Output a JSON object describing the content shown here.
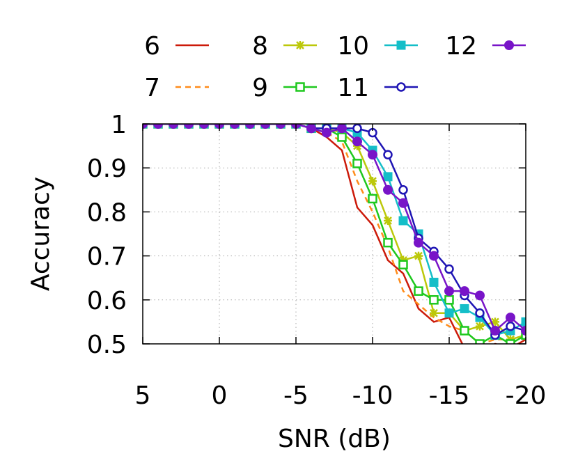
{
  "chart_data": {
    "type": "line",
    "title": "",
    "xlabel": "SNR (dB)",
    "ylabel": "Accuracy",
    "xlim": [
      5,
      -20
    ],
    "ylim": [
      0.5,
      1
    ],
    "x_reversed": true,
    "grid": true,
    "legend_placement": "top",
    "x_ticks": [
      "5",
      "0",
      "-5",
      "-10",
      "-15",
      "-20"
    ],
    "x_tick_values": [
      5,
      0,
      -5,
      -10,
      -15,
      -20
    ],
    "y_ticks": [
      "0.5",
      "0.6",
      "0.7",
      "0.8",
      "0.9",
      "1"
    ],
    "y_tick_values": [
      0.5,
      0.6,
      0.7,
      0.8,
      0.9,
      1
    ],
    "x": [
      5,
      4,
      3,
      2,
      1,
      0,
      -1,
      -2,
      -3,
      -4,
      -5,
      -6,
      -7,
      -8,
      -9,
      -10,
      -11,
      -12,
      -13,
      -14,
      -15,
      -16,
      -17,
      -18,
      -19,
      -20
    ],
    "series": [
      {
        "name": "6",
        "color": "#cc1a0a",
        "dash": false,
        "marker": "none",
        "values": [
          1,
          1,
          1,
          1,
          1,
          1,
          1,
          1,
          1,
          1,
          1,
          0.99,
          0.97,
          0.94,
          0.81,
          0.77,
          0.69,
          0.66,
          0.58,
          0.55,
          0.56,
          0.49,
          0.48,
          0.5,
          0.49,
          0.51
        ]
      },
      {
        "name": "7",
        "color": "#ff8c1a",
        "dash": true,
        "marker": "none",
        "values": [
          1,
          1,
          1,
          1,
          1,
          1,
          1,
          1,
          1,
          1,
          1,
          0.99,
          0.98,
          0.96,
          0.87,
          0.8,
          0.72,
          0.62,
          0.59,
          0.56,
          0.54,
          0.53,
          0.5,
          0.51,
          0.51,
          0.52
        ]
      },
      {
        "name": "8",
        "color": "#bcc80a",
        "dash": false,
        "marker": "star",
        "values": [
          1,
          1,
          1,
          1,
          1,
          1,
          1,
          1,
          1,
          1,
          1,
          0.99,
          0.99,
          0.98,
          0.95,
          0.87,
          0.78,
          0.69,
          0.7,
          0.57,
          0.57,
          0.53,
          0.54,
          0.55,
          0.51,
          0.52
        ]
      },
      {
        "name": "9",
        "color": "#1ec81e",
        "dash": false,
        "marker": "open-square",
        "values": [
          1,
          1,
          1,
          1,
          1,
          1,
          1,
          1,
          1,
          1,
          1,
          0.99,
          0.99,
          0.97,
          0.91,
          0.83,
          0.73,
          0.68,
          0.62,
          0.6,
          0.6,
          0.53,
          0.5,
          0.52,
          0.5,
          0.52
        ]
      },
      {
        "name": "10",
        "color": "#14bec8",
        "dash": false,
        "marker": "filled-square",
        "values": [
          1,
          1,
          1,
          1,
          1,
          1,
          1,
          1,
          1,
          1,
          1,
          0.99,
          0.99,
          0.99,
          0.98,
          0.94,
          0.88,
          0.78,
          0.75,
          0.64,
          0.57,
          0.58,
          0.56,
          0.52,
          0.53,
          0.55
        ]
      },
      {
        "name": "11",
        "color": "#1e14b4",
        "dash": false,
        "marker": "open-circle",
        "values": [
          1,
          1,
          1,
          1,
          1,
          1,
          1,
          1,
          1,
          1,
          1,
          0.99,
          0.99,
          0.99,
          0.99,
          0.98,
          0.93,
          0.85,
          0.74,
          0.71,
          0.67,
          0.61,
          0.57,
          0.52,
          0.54,
          0.53
        ]
      },
      {
        "name": "12",
        "color": "#7814c8",
        "dash": false,
        "marker": "filled-circle",
        "values": [
          1,
          1,
          1,
          1,
          1,
          1,
          1,
          1,
          1,
          1,
          1,
          0.99,
          0.98,
          0.99,
          0.96,
          0.93,
          0.85,
          0.82,
          0.73,
          0.7,
          0.62,
          0.62,
          0.61,
          0.53,
          0.56,
          0.53
        ]
      }
    ]
  }
}
